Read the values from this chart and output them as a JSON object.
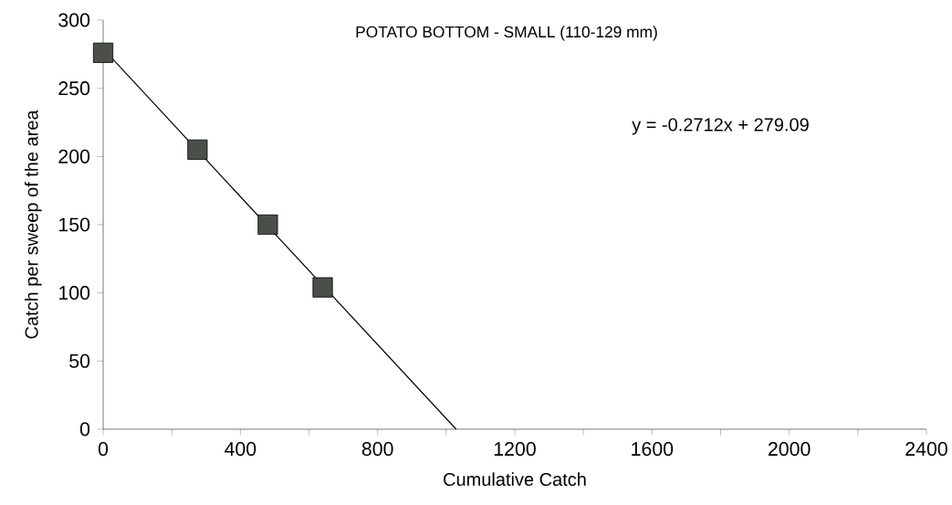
{
  "chart_data": {
    "type": "scatter",
    "title": "POTATO BOTTOM - SMALL (110-129 mm)",
    "xlabel": "Cumulative Catch",
    "ylabel": "Catch per sweep of the area",
    "annotations": [
      "y = -0.2712x + 279.09"
    ],
    "xlim": [
      0,
      2400
    ],
    "ylim": [
      0,
      300
    ],
    "xticks": [
      0,
      {
        "value": 200,
        "label": null
      },
      400,
      {
        "value": 600,
        "label": null
      },
      800,
      {
        "value": 1000,
        "label": null
      },
      1200,
      {
        "value": 1400,
        "label": null
      },
      1600,
      {
        "value": 1800,
        "label": null
      },
      2000,
      {
        "value": 2200,
        "label": null
      },
      2400
    ],
    "yticks": [
      0,
      50,
      100,
      150,
      200,
      250,
      300
    ],
    "series": [
      {
        "type": "line",
        "x": [
          0,
          1029
        ],
        "values": [
          279,
          0
        ],
        "color": "#000000",
        "marker": "none"
      },
      {
        "x": [
          0,
          275,
          480,
          640
        ],
        "values": [
          276,
          205,
          150,
          104
        ],
        "color": "#4a4f49",
        "marker": "square"
      }
    ]
  }
}
